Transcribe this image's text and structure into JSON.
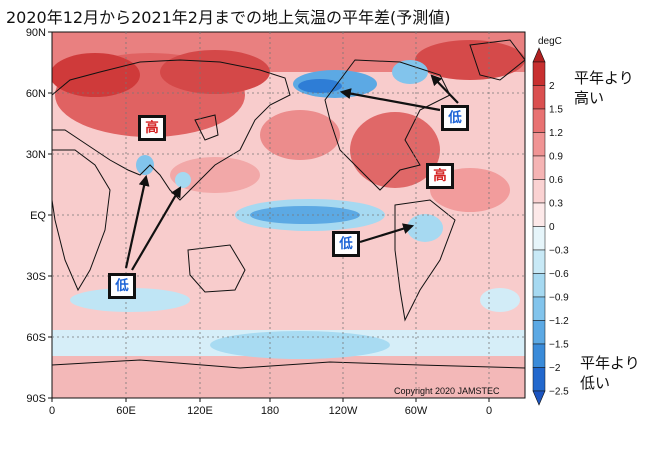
{
  "title": "2020年12月から2021年2月までの地上気温の平年差(予測値)",
  "y_axis_ticks": [
    "90N",
    "60N",
    "30N",
    "EQ",
    "30S",
    "60S",
    "90S"
  ],
  "x_axis_ticks": [
    "0",
    "60E",
    "120E",
    "180",
    "120W",
    "60W",
    "0"
  ],
  "colorbar": {
    "unit": "degC",
    "labels": [
      "2",
      "1.5",
      "1.2",
      "0.9",
      "0.6",
      "0.3",
      "0",
      "−0.3",
      "−0.6",
      "−0.9",
      "−1.2",
      "−1.5",
      "−2",
      "−2.5"
    ],
    "warm_colors": [
      "#c83030",
      "#da5050",
      "#e87272",
      "#f09494",
      "#f5b4b4",
      "#fad2d2",
      "#fde9e9"
    ],
    "cool_colors": [
      "#e6f5fa",
      "#c8e9f6",
      "#a6d9f1",
      "#82c4ec",
      "#5ca9e4",
      "#3a8bd9",
      "#2268cd"
    ]
  },
  "side_labels": {
    "warm": [
      "平年より",
      "高い"
    ],
    "cool": [
      "平年より",
      "低い"
    ]
  },
  "annotations": {
    "high_label": "高",
    "low_label": "低"
  },
  "copyright": "Copyright 2020 JAMSTEC"
}
